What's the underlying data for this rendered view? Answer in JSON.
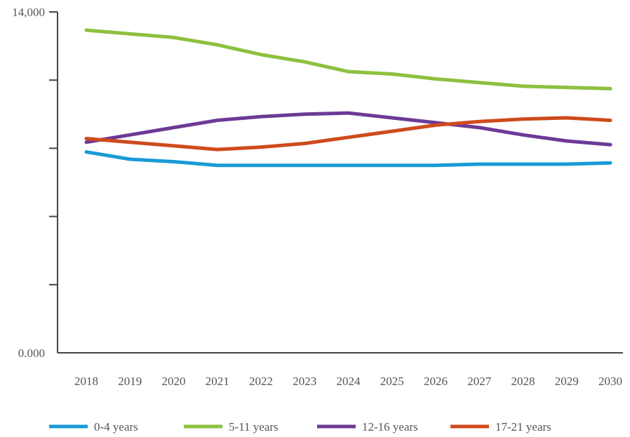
{
  "chart_data": {
    "type": "line",
    "title": "",
    "xlabel": "",
    "ylabel": "",
    "categories": [
      "2018",
      "2019",
      "2020",
      "2021",
      "2022",
      "2023",
      "2024",
      "2025",
      "2026",
      "2027",
      "2028",
      "2029",
      "2030"
    ],
    "x_positions": [
      2018,
      2019,
      2020,
      2021,
      2022,
      2023,
      2024,
      2025,
      2026,
      2027,
      2028,
      2029,
      2030
    ],
    "ylim": [
      0,
      14000
    ],
    "y_tick_values": [
      0,
      2800,
      5600,
      8400,
      11200,
      14000
    ],
    "y_tick_labels": {
      "0": "0.000",
      "14000": "14,000"
    },
    "grid": false,
    "legend_position": "bottom",
    "series": [
      {
        "name": "0-4 years",
        "color": "#1a9ad6",
        "values": [
          8250,
          7950,
          7850,
          7700,
          7700,
          7700,
          7700,
          7700,
          7700,
          7750,
          7750,
          7750,
          7800
        ]
      },
      {
        "name": "5-11 years",
        "color": "#8dc03f",
        "values": [
          13250,
          13100,
          12950,
          12650,
          12250,
          11950,
          11550,
          11450,
          11250,
          11100,
          10950,
          10900,
          10850
        ]
      },
      {
        "name": "12-16 years",
        "color": "#6c3a96",
        "values": [
          8650,
          8950,
          9250,
          9550,
          9700,
          9800,
          9850,
          9650,
          9450,
          9250,
          8950,
          8700,
          8550
        ]
      },
      {
        "name": "17-21 years",
        "color": "#cf4a1c",
        "values": [
          8800,
          8650,
          8500,
          8350,
          8450,
          8600,
          8850,
          9100,
          9350,
          9500,
          9600,
          9650,
          9550
        ]
      }
    ]
  }
}
